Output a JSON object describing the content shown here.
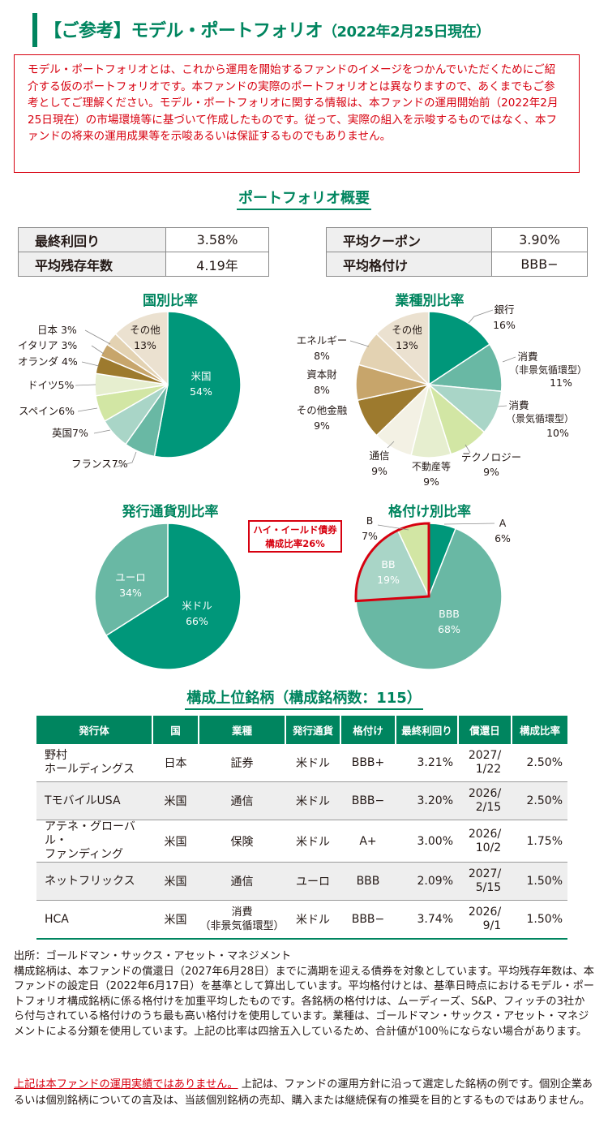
{
  "header": {
    "title": "【ご参考】モデル・ポートフォリオ",
    "date": "（2022年2月25日現在）"
  },
  "notice": "モデル・ポートフォリオとは、これから運用を開始するファンドのイメージをつかんでいただくためにご紹介する仮のポートフォリオです。本ファンドの実際のポートフォリオとは異なりますので、あくまでもご参考としてご理解ください。モデル・ポートフォリオに関する情報は、本ファンドの運用開始前（2022年2月25日現在）の市場環境等に基づいて作成したものです。従って、実際の組入を示唆するものではなく、本ファンドの将来の運用成果等を示唆あるいは保証するものでもありません。",
  "overview": {
    "title": "ポートフォリオ概要",
    "left": [
      {
        "label": "最終利回り",
        "value": "3.58%"
      },
      {
        "label": "平均残存年数",
        "value": "4.19年"
      }
    ],
    "right": [
      {
        "label": "平均クーポン",
        "value": "3.90%"
      },
      {
        "label": "平均格付け",
        "value": "BBB−"
      }
    ]
  },
  "chart_data": [
    {
      "type": "pie",
      "title": "国別比率",
      "slices": [
        {
          "label": "米国",
          "value": 54,
          "color": "#00977a"
        },
        {
          "label": "フランス",
          "value": 7,
          "color": "#69b8a4"
        },
        {
          "label": "英国",
          "value": 7,
          "color": "#a9d5c7"
        },
        {
          "label": "スペイン",
          "value": 6,
          "color": "#d2e6a4"
        },
        {
          "label": "ドイツ",
          "value": 5,
          "color": "#e6eecf"
        },
        {
          "label": "オランダ",
          "value": 4,
          "color": "#9d7a2e"
        },
        {
          "label": "イタリア",
          "value": 3,
          "color": "#c7a56b"
        },
        {
          "label": "日本",
          "value": 3,
          "color": "#e3d2b2"
        },
        {
          "label": "その他",
          "value": 13,
          "color": "#ebe1d0"
        }
      ],
      "labels_text": [
        "米国",
        "54%",
        "フランス7%",
        "英国7%",
        "スペイン6%",
        "ドイツ5%",
        "オランダ 4%",
        "イタリア 3%",
        "日本 3%",
        "その他",
        "13%"
      ]
    },
    {
      "type": "pie",
      "title": "業種別比率",
      "slices": [
        {
          "label": "銀行",
          "value": 16,
          "color": "#00977a"
        },
        {
          "label": "消費（非景気循環型）",
          "value": 11,
          "color": "#69b8a4"
        },
        {
          "label": "消費（景気循環型）",
          "value": 10,
          "color": "#a9d5c7"
        },
        {
          "label": "テクノロジー",
          "value": 9,
          "color": "#d2e6a4"
        },
        {
          "label": "不動産等",
          "value": 9,
          "color": "#e6eecf"
        },
        {
          "label": "通信",
          "value": 9,
          "color": "#f3f1e4"
        },
        {
          "label": "その他金融",
          "value": 9,
          "color": "#9d7a2e"
        },
        {
          "label": "資本財",
          "value": 8,
          "color": "#c7a56b"
        },
        {
          "label": "エネルギー",
          "value": 8,
          "color": "#e3d2b2"
        },
        {
          "label": "その他",
          "value": 13,
          "color": "#ebe1d0"
        }
      ],
      "labels_text": [
        "銀行",
        "16%",
        "消費",
        "（非景気循環型）",
        "11%",
        "消費",
        "（景気循環型）",
        "10%",
        "テクノロジー",
        "9%",
        "不動産等",
        "9%",
        "通信",
        "9%",
        "その他金融",
        "9%",
        "資本財",
        "8%",
        "エネルギー",
        "8%",
        "その他",
        "13%"
      ]
    },
    {
      "type": "pie",
      "title": "発行通貨別比率",
      "slices": [
        {
          "label": "米ドル",
          "value": 66,
          "color": "#00977a"
        },
        {
          "label": "ユーロ",
          "value": 34,
          "color": "#69b8a4"
        }
      ],
      "labels_text": [
        "米ドル",
        "66%",
        "ユーロ",
        "34%"
      ]
    },
    {
      "type": "pie",
      "title": "格付け別比率",
      "slices": [
        {
          "label": "A",
          "value": 6,
          "color": "#00977a"
        },
        {
          "label": "BBB",
          "value": 68,
          "color": "#69b8a4"
        },
        {
          "label": "BB",
          "value": 19,
          "color": "#a9d5c7"
        },
        {
          "label": "B",
          "value": 7,
          "color": "#d2e6a4"
        }
      ],
      "labels_text": [
        "A",
        "6%",
        "BBB",
        "68%",
        "BB",
        "19%",
        "B",
        "7%"
      ],
      "callout": [
        "ハイ・イールド債券",
        "構成比率26%"
      ]
    }
  ],
  "holdings": {
    "title": "構成上位銘柄（構成銘柄数：115）",
    "headers": [
      "発行体",
      "国",
      "業種",
      "発行通貨",
      "格付け",
      "最終利回り",
      "償還日",
      "構成比率"
    ],
    "rows": [
      {
        "issuer": "野村\nホールディングス",
        "country": "日本",
        "sector": "証券",
        "currency": "米ドル",
        "rating": "BBB+",
        "yield": "3.21%",
        "maturity": "2027/\n1/22",
        "weight": "2.50%"
      },
      {
        "issuer": "TモバイルUSA",
        "country": "米国",
        "sector": "通信",
        "currency": "米ドル",
        "rating": "BBB−",
        "yield": "3.20%",
        "maturity": "2026/\n2/15",
        "weight": "2.50%"
      },
      {
        "issuer": "アテネ・グローバル・\nファンディング",
        "country": "米国",
        "sector": "保険",
        "currency": "米ドル",
        "rating": "A+",
        "yield": "3.00%",
        "maturity": "2026/\n10/2",
        "weight": "1.75%"
      },
      {
        "issuer": "ネットフリックス",
        "country": "米国",
        "sector": "通信",
        "currency": "ユーロ",
        "rating": "BBB",
        "yield": "2.09%",
        "maturity": "2027/\n5/15",
        "weight": "1.50%"
      },
      {
        "issuer": "HCA",
        "country": "米国",
        "sector": "消費\n（非景気循環型）",
        "currency": "米ドル",
        "rating": "BBB−",
        "yield": "3.74%",
        "maturity": "2026/\n9/1",
        "weight": "1.50%"
      }
    ]
  },
  "footnote": "出所：ゴールドマン・サックス・アセット・マネジメント\n構成銘柄は、本ファンドの償還日（2027年6月28日）までに満期を迎える債券を対象としています。平均残存年数は、本ファンドの設定日（2022年6月17日）を基準として算出しています。平均格付けとは、基準日時点におけるモデル・ポートフォリオ構成銘柄に係る格付けを加重平均したものです。各銘柄の格付けは、ムーディーズ、S&P、フィッチの3社から付与されている格付けのうち最も高い格付けを使用しています。業種は、ゴールドマン・サックス・アセット・マネジメントによる分類を使用しています。上記の比率は四捨五入しているため、合計値が100％にならない場合があります。",
  "disclaimer": {
    "red": "上記は本ファンドの運用実績ではありません。",
    "text": "上記は、ファンドの運用方針に沿って選定した銘柄の例です。個別企業あるいは個別銘柄についての言及は、当該個別銘柄の売却、購入または継続保有の推奨を目的とするものではありません。"
  }
}
